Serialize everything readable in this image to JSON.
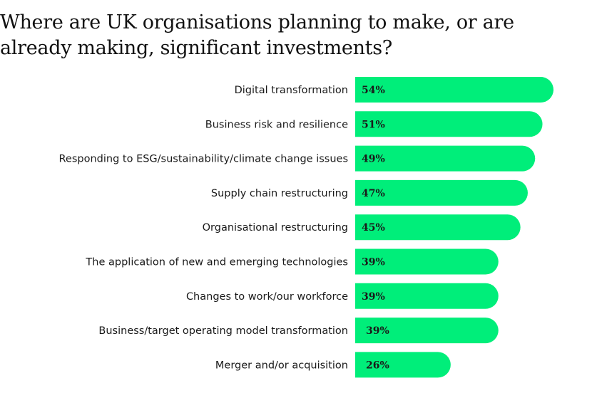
{
  "chart_data": {
    "type": "bar",
    "orientation": "horizontal",
    "title": "Where are UK organisations planning to make, or are already making, significant investments?",
    "categories": [
      "Digital transformation",
      "Business risk and resilience",
      "Responding to ESG/sustainability/climate change issues",
      "Supply chain restructuring",
      "Organisational restructuring",
      "The application of new and emerging technologies",
      "Changes to work/our workforce",
      "Business/target operating model transformation",
      "Merger and/or acquisition"
    ],
    "values": [
      54,
      51,
      49,
      47,
      45,
      39,
      39,
      39,
      26
    ],
    "value_labels": [
      "54%",
      "51%",
      "49%",
      "47%",
      "45%",
      "39%",
      "39%",
      "39%",
      "26%"
    ],
    "unit": "%",
    "xlim": [
      0,
      54
    ],
    "grid": false,
    "legend": "none",
    "bar_color": "#00ee7a"
  }
}
